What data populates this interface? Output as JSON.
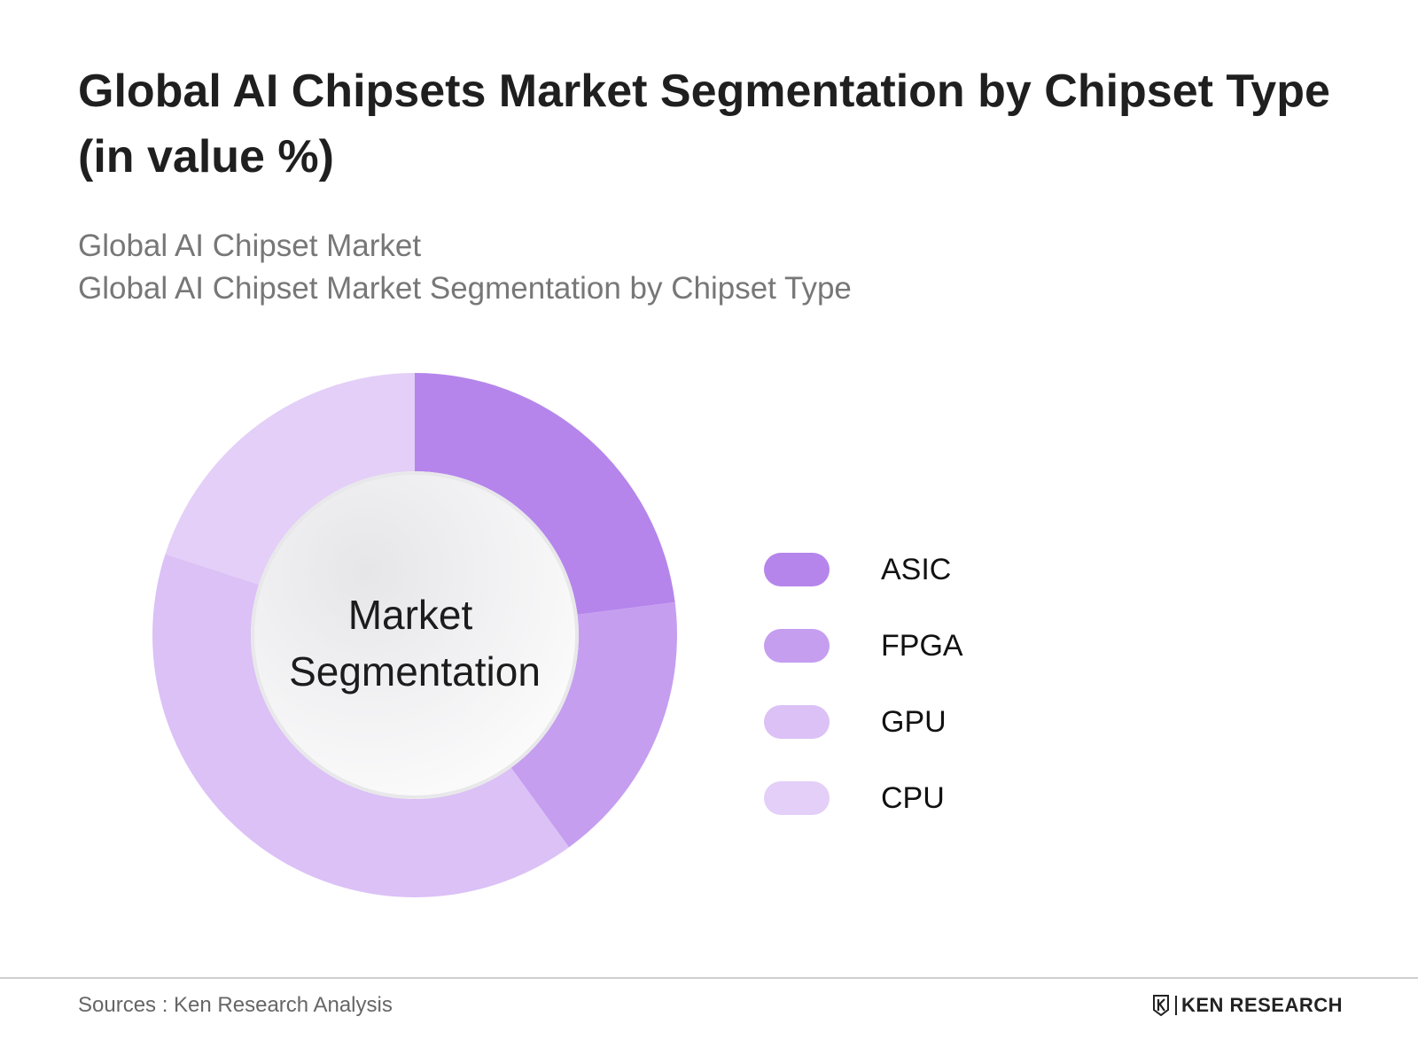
{
  "header": {
    "title": "Global AI Chipsets Market Segmentation by Chipset Type (in value %)",
    "subtitle_line1": "Global AI Chipset Market",
    "subtitle_line2": "Global AI Chipset Market Segmentation by Chipset Type"
  },
  "chart_data": {
    "type": "pie",
    "variant": "donut",
    "title": "Global AI Chipsets Market Segmentation by Chipset Type (in value %)",
    "center_label_line1": "Market",
    "center_label_line2": "Segmentation",
    "categories": [
      "ASIC",
      "FPGA",
      "GPU",
      "CPU"
    ],
    "values": [
      23,
      17,
      40,
      20
    ],
    "colors": [
      "#b585ec",
      "#c59ef0",
      "#dbc1f6",
      "#e3cff7"
    ],
    "legend_position": "right"
  },
  "footer": {
    "source": "Sources : Ken Research Analysis",
    "logo_text": "KEN RESEARCH",
    "logo_mark": "K"
  }
}
